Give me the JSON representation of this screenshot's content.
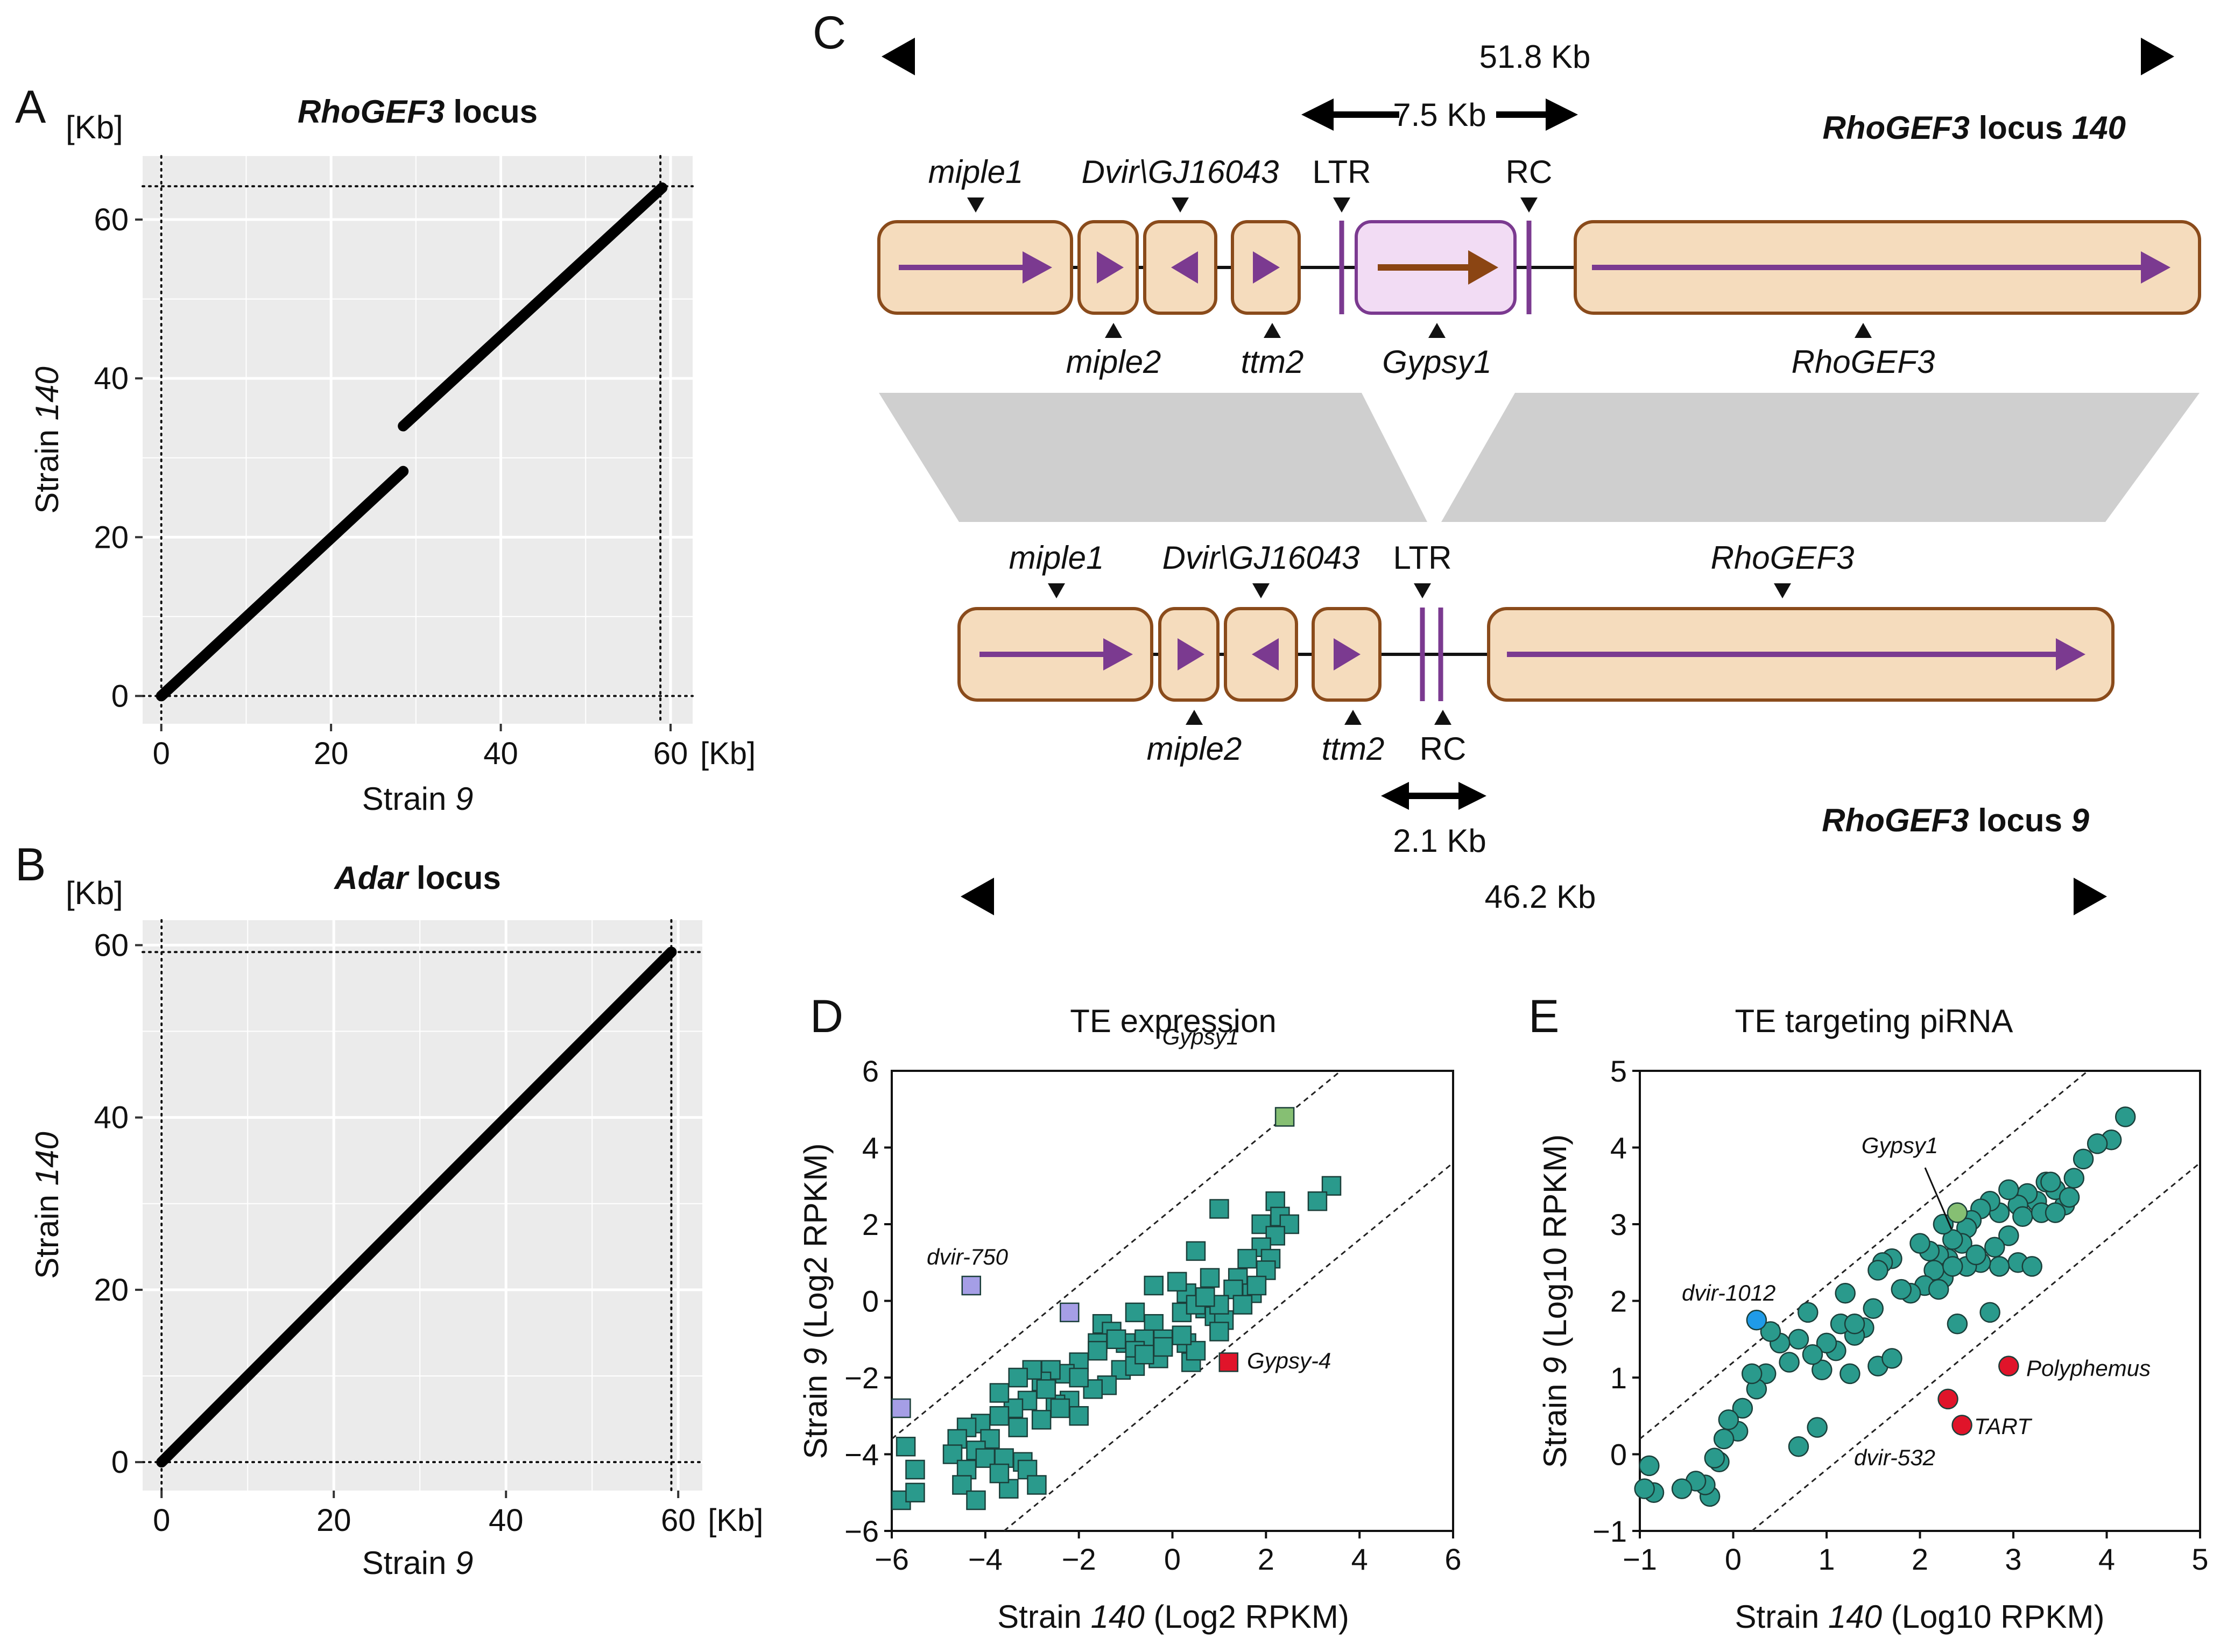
{
  "colors": {
    "panel_bg": "#ebebeb",
    "box_fill": "#f5dcbd",
    "box_stroke": "#8a4b1b",
    "arrow_purple": "#7b3a90",
    "te_fill": "#f2dcf4",
    "te_arrow": "#8b4513",
    "syntenic": "#cfcfcf",
    "teal": "#2a9a8c",
    "green": "#86bf73",
    "lavender": "#a59ee6",
    "red": "#e0142a",
    "blue": "#1f9be8"
  },
  "panelA": {
    "letter": "A",
    "unit_y": "[Kb]",
    "title_gene": "RhoGEF3",
    "title_rest": "locus",
    "xlabel_pre": "Strain ",
    "xlabel_ital": "9",
    "ylabel_pre": "Strain ",
    "ylabel_ital": "140"
  },
  "panelB": {
    "letter": "B",
    "unit_y": "[Kb]",
    "title_gene": "Adar",
    "title_rest": "locus",
    "xlabel_pre": "Strain ",
    "xlabel_ital": "9",
    "ylabel_pre": "Strain ",
    "ylabel_ital": "140"
  },
  "panelC": {
    "letter": "C",
    "top_span": "51.8 Kb",
    "ins_span": "7.5 Kb",
    "top_locus_gene": "RhoGEF3",
    "top_locus_rest": " locus ",
    "top_locus_strain": "140",
    "bottom_locus_gene": "RhoGEF3",
    "bottom_locus_rest": " locus ",
    "bottom_locus_strain": "9",
    "small_span": "2.1 Kb",
    "bottom_span": "46.2 Kb",
    "genes": {
      "miple1": "miple1",
      "miple2": "miple2",
      "gj_ital": "Dvir\\GJ16043",
      "ltr": "LTR",
      "rc": "RC",
      "ttm2": "ttm2",
      "gypsy1": "Gypsy1",
      "rhogef3": "RhoGEF3"
    }
  },
  "chart_data": [
    {
      "panel": "A",
      "type": "line",
      "title": "RhoGEF3 locus",
      "xlabel": "Strain 9",
      "ylabel": "Strain 140",
      "x_unit": "[Kb]",
      "y_unit": "[Kb]",
      "xlim": [
        -2.2,
        62.6
      ],
      "ylim": [
        -3.5,
        68
      ],
      "xticks": [
        0,
        20,
        40,
        60
      ],
      "yticks": [
        0,
        20,
        40,
        60
      ],
      "x_end": 58.8,
      "y_end": 64.2,
      "series": [
        {
          "name": "alignment-1",
          "x": [
            0,
            28.5
          ],
          "y": [
            0,
            28.3
          ]
        },
        {
          "name": "alignment-2",
          "x": [
            28.5,
            59
          ],
          "y": [
            34.0,
            64.0
          ]
        }
      ]
    },
    {
      "panel": "B",
      "type": "line",
      "title": "Adar locus",
      "xlabel": "Strain 9",
      "ylabel": "Strain 140",
      "x_unit": "[Kb]",
      "y_unit": "[Kb]",
      "xlim": [
        -2.2,
        62.8
      ],
      "ylim": [
        -3.3,
        62.9
      ],
      "xticks": [
        0,
        20,
        40,
        60
      ],
      "yticks": [
        0,
        20,
        40,
        60
      ],
      "x_end": 59.2,
      "y_end": 59.2,
      "series": [
        {
          "name": "alignment-1",
          "x": [
            0,
            59.2
          ],
          "y": [
            0,
            59.2
          ]
        }
      ]
    },
    {
      "panel": "D",
      "type": "scatter",
      "letter": "D",
      "title": "TE expression",
      "xlabel_pre": "Strain ",
      "xlabel_ital": "140",
      "xlabel_post": " (Log2 RPKM)",
      "ylabel_pre": "Strain ",
      "ylabel_ital": "9",
      "ylabel_post": " (Log2 RPKM)",
      "xlim": [
        -6,
        6
      ],
      "ylim": [
        -6,
        6
      ],
      "xticks": [
        -6,
        -4,
        -2,
        0,
        2,
        4,
        6
      ],
      "yticks": [
        -6,
        -4,
        -2,
        0,
        2,
        4
      ],
      "ytick_top": 6,
      "marker": "square",
      "fold_lines": [
        2.4,
        -2.4
      ],
      "labels": {
        "gypsy1": "Gypsy1",
        "dvir750": "dvir-750",
        "gypsy4": "Gypsy-4"
      },
      "highlights": [
        {
          "name": "Gypsy1",
          "x": 2.4,
          "y": 4.8,
          "color": "green"
        },
        {
          "name": "dvir-750",
          "x": -4.3,
          "y": 0.4,
          "color": "lavender"
        },
        {
          "name": "lavender-2",
          "x": -2.2,
          "y": -0.3,
          "color": "lavender"
        },
        {
          "name": "lavender-3",
          "x": -5.8,
          "y": -2.8,
          "color": "lavender"
        },
        {
          "name": "Gypsy-4",
          "x": 1.2,
          "y": -1.6,
          "color": "red"
        }
      ],
      "points": [
        [
          3.4,
          3.0
        ],
        [
          3.1,
          2.6
        ],
        [
          2.2,
          2.6
        ],
        [
          2.3,
          2.2
        ],
        [
          2.5,
          2.0
        ],
        [
          1.9,
          2.0
        ],
        [
          2.2,
          1.7
        ],
        [
          1.9,
          1.4
        ],
        [
          1.0,
          2.4
        ],
        [
          2.1,
          1.1
        ],
        [
          1.6,
          1.1
        ],
        [
          1.4,
          0.6
        ],
        [
          2.0,
          0.8
        ],
        [
          1.7,
          0.2
        ],
        [
          0.5,
          1.3
        ],
        [
          0.8,
          0.6
        ],
        [
          0.3,
          0.2
        ],
        [
          0.2,
          -0.3
        ],
        [
          0.1,
          0.5
        ],
        [
          0.7,
          -0.2
        ],
        [
          1.3,
          0.3
        ],
        [
          1.8,
          0.4
        ],
        [
          0.9,
          -0.4
        ],
        [
          1.1,
          -0.5
        ],
        [
          1.0,
          -0.8
        ],
        [
          1.5,
          -0.1
        ],
        [
          1.0,
          -0.1
        ],
        [
          0.5,
          -0.1
        ],
        [
          -0.4,
          0.4
        ],
        [
          -0.8,
          -0.3
        ],
        [
          -0.4,
          -0.6
        ],
        [
          -0.6,
          -1.0
        ],
        [
          -1.0,
          -1.1
        ],
        [
          -0.3,
          -1.5
        ],
        [
          -0.8,
          -1.3
        ],
        [
          0.3,
          -1.1
        ],
        [
          0.4,
          -1.6
        ],
        [
          0.5,
          -1.3
        ],
        [
          0.2,
          -0.9
        ],
        [
          -0.2,
          -1.0
        ],
        [
          -1.5,
          -0.6
        ],
        [
          -1.3,
          -0.8
        ],
        [
          -1.6,
          -1.1
        ],
        [
          -1.1,
          -1.8
        ],
        [
          -1.4,
          -2.2
        ],
        [
          -1.7,
          -2.3
        ],
        [
          -2.0,
          -1.6
        ],
        [
          -2.3,
          -1.9
        ],
        [
          -2.6,
          -1.8
        ],
        [
          -2.2,
          -2.6
        ],
        [
          -2.8,
          -2.1
        ],
        [
          -2.0,
          -3.0
        ],
        [
          -1.6,
          -1.3
        ],
        [
          -0.8,
          -1.7
        ],
        [
          -2.5,
          -2.7
        ],
        [
          -3.0,
          -1.8
        ],
        [
          -3.1,
          -2.6
        ],
        [
          -3.3,
          -2.0
        ],
        [
          -2.8,
          -3.1
        ],
        [
          -3.4,
          -2.8
        ],
        [
          -3.7,
          -2.4
        ],
        [
          -3.7,
          -3.0
        ],
        [
          -4.1,
          -3.2
        ],
        [
          -3.3,
          -3.3
        ],
        [
          -3.9,
          -3.6
        ],
        [
          -4.2,
          -3.9
        ],
        [
          -4.4,
          -3.3
        ],
        [
          -4.6,
          -3.6
        ],
        [
          -4.7,
          -4.0
        ],
        [
          -4.4,
          -4.4
        ],
        [
          -4.0,
          -4.1
        ],
        [
          -3.6,
          -4.1
        ],
        [
          -3.2,
          -4.2
        ],
        [
          -4.5,
          -4.8
        ],
        [
          -3.5,
          -4.9
        ],
        [
          -3.1,
          -4.4
        ],
        [
          -2.9,
          -4.8
        ],
        [
          -4.2,
          -5.2
        ],
        [
          -3.7,
          -4.5
        ],
        [
          -5.7,
          -3.8
        ],
        [
          -5.5,
          -4.4
        ],
        [
          -5.8,
          -5.2
        ],
        [
          -5.5,
          -5.0
        ],
        [
          -2.4,
          -2.8
        ],
        [
          -0.6,
          -1.4
        ],
        [
          -1.2,
          -1.0
        ],
        [
          0.7,
          0.1
        ],
        [
          -0.2,
          -1.2
        ],
        [
          -2.0,
          -2.0
        ],
        [
          -2.7,
          -2.3
        ]
      ]
    },
    {
      "panel": "E",
      "type": "scatter",
      "letter": "E",
      "title": "TE targeting piRNA",
      "xlabel_pre": "Strain ",
      "xlabel_ital": "140",
      "xlabel_post": " (Log10 RPKM)",
      "ylabel_pre": "Strain ",
      "ylabel_ital": "9",
      "ylabel_post": " (Log10 RPKM)",
      "xlim": [
        -1,
        5
      ],
      "ylim": [
        -1,
        5
      ],
      "xticks": [
        -1,
        0,
        1,
        2,
        3,
        4,
        5
      ],
      "yticks": [
        -1,
        0,
        1,
        2,
        3,
        4,
        5
      ],
      "marker": "circle",
      "fold_lines": [
        1.2,
        -1.2
      ],
      "labels": {
        "gypsy1": "Gypsy1",
        "dvir1012": "dvir-1012",
        "polyphemus": "Polyphemus",
        "tart": "TART",
        "dvir532": "dvir-532"
      },
      "highlights": [
        {
          "name": "Gypsy1",
          "x": 2.4,
          "y": 3.15,
          "color": "green"
        },
        {
          "name": "dvir-1012",
          "x": 0.25,
          "y": 1.75,
          "color": "blue"
        },
        {
          "name": "Polyphemus",
          "x": 2.95,
          "y": 1.15,
          "color": "red"
        },
        {
          "name": "TART",
          "x": 2.45,
          "y": 0.38,
          "color": "red"
        },
        {
          "name": "dvir-532",
          "x": 2.3,
          "y": 0.72,
          "color": "red"
        }
      ],
      "points": [
        [
          4.2,
          4.4
        ],
        [
          4.05,
          4.1
        ],
        [
          3.9,
          4.05
        ],
        [
          3.75,
          3.85
        ],
        [
          3.65,
          3.6
        ],
        [
          3.55,
          3.25
        ],
        [
          3.45,
          3.45
        ],
        [
          3.35,
          3.55
        ],
        [
          3.25,
          3.3
        ],
        [
          3.15,
          3.4
        ],
        [
          3.05,
          3.25
        ],
        [
          2.95,
          3.45
        ],
        [
          2.85,
          3.15
        ],
        [
          2.75,
          3.3
        ],
        [
          2.65,
          3.2
        ],
        [
          2.55,
          3.05
        ],
        [
          2.5,
          2.95
        ],
        [
          2.45,
          2.75
        ],
        [
          2.35,
          2.8
        ],
        [
          2.3,
          2.55
        ],
        [
          2.25,
          2.3
        ],
        [
          2.2,
          2.6
        ],
        [
          2.15,
          2.4
        ],
        [
          2.1,
          2.65
        ],
        [
          2.05,
          2.2
        ],
        [
          2.0,
          2.75
        ],
        [
          1.9,
          2.1
        ],
        [
          1.8,
          2.15
        ],
        [
          1.7,
          2.55
        ],
        [
          1.6,
          2.5
        ],
        [
          1.55,
          2.4
        ],
        [
          1.5,
          1.9
        ],
        [
          1.4,
          1.65
        ],
        [
          1.3,
          1.55
        ],
        [
          1.2,
          2.1
        ],
        [
          1.15,
          1.7
        ],
        [
          1.1,
          1.35
        ],
        [
          1.0,
          1.45
        ],
        [
          0.95,
          1.1
        ],
        [
          0.85,
          1.3
        ],
        [
          0.8,
          1.85
        ],
        [
          0.7,
          1.5
        ],
        [
          0.6,
          1.2
        ],
        [
          0.5,
          1.45
        ],
        [
          0.4,
          1.6
        ],
        [
          0.35,
          1.05
        ],
        [
          0.25,
          0.85
        ],
        [
          0.2,
          1.05
        ],
        [
          0.1,
          0.6
        ],
        [
          0.05,
          0.3
        ],
        [
          -0.05,
          0.45
        ],
        [
          -0.1,
          0.2
        ],
        [
          -0.15,
          -0.1
        ],
        [
          -0.2,
          -0.05
        ],
        [
          -0.25,
          -0.55
        ],
        [
          -0.3,
          -0.4
        ],
        [
          -0.4,
          -0.35
        ],
        [
          -0.55,
          -0.45
        ],
        [
          -0.85,
          -0.5
        ],
        [
          -0.95,
          -0.45
        ],
        [
          -0.9,
          -0.15
        ],
        [
          0.7,
          0.1
        ],
        [
          0.9,
          0.35
        ],
        [
          1.25,
          1.05
        ],
        [
          1.55,
          1.15
        ],
        [
          1.7,
          1.25
        ],
        [
          1.3,
          1.7
        ],
        [
          3.05,
          2.5
        ],
        [
          3.2,
          2.45
        ],
        [
          2.85,
          2.45
        ],
        [
          2.65,
          2.5
        ],
        [
          2.5,
          2.45
        ],
        [
          2.4,
          1.7
        ],
        [
          2.75,
          1.85
        ],
        [
          3.1,
          3.1
        ],
        [
          3.3,
          3.15
        ],
        [
          3.45,
          3.15
        ],
        [
          3.4,
          3.55
        ],
        [
          2.95,
          2.85
        ],
        [
          2.8,
          2.7
        ],
        [
          2.6,
          2.6
        ],
        [
          2.35,
          2.45
        ],
        [
          2.25,
          3.0
        ],
        [
          3.6,
          3.35
        ],
        [
          2.2,
          2.15
        ]
      ]
    }
  ]
}
